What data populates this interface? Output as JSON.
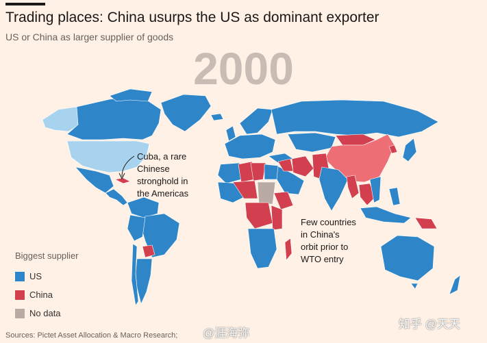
{
  "header": {
    "title": "Trading places: China usurps the US as dominant exporter",
    "subtitle": "US or China as larger supplier of goods",
    "year": "2000"
  },
  "colors": {
    "us": "#2E86C9",
    "us_home": "#A7D3EE",
    "china": "#D2404F",
    "china_home": "#EE6E76",
    "no_data": "#B9AAA3",
    "background": "#FFF1E5"
  },
  "annotations": {
    "cuba": [
      "Cuba, a rare",
      "Chinese",
      "stronghold in",
      "the Americas"
    ],
    "wto": [
      "Few countries",
      "in China's",
      "orbit prior to",
      "WTO entry"
    ]
  },
  "legend": {
    "title": "Biggest supplier",
    "items": [
      {
        "label": "US",
        "color": "#2E86C9"
      },
      {
        "label": "China",
        "color": "#D2404F"
      },
      {
        "label": "No data",
        "color": "#B9AAA3"
      }
    ]
  },
  "source": "Sources: Pictet Asset Allocation & Macro Research;",
  "watermarks": {
    "weibo": "@涯海弥",
    "zhihu": "知乎 @天天"
  }
}
